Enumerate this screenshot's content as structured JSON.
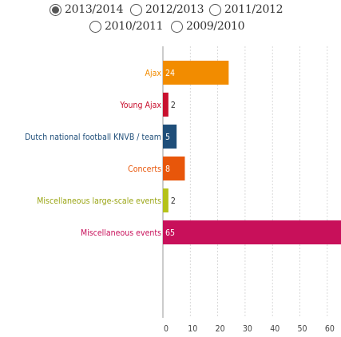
{
  "legend": {
    "items": [
      {
        "label": "2013/2014",
        "selected": true
      },
      {
        "label": "2012/2013",
        "selected": false
      },
      {
        "label": "2011/2012",
        "selected": false
      },
      {
        "label": "2010/2011",
        "selected": false
      },
      {
        "label": "2009/2010",
        "selected": false
      }
    ]
  },
  "chart_data": {
    "type": "bar",
    "orientation": "horizontal",
    "title": "",
    "xlabel": "",
    "ylabel": "",
    "categories": [
      "Ajax",
      "Young Ajax",
      "Dutch national football KNVB / team",
      "Concerts",
      "Miscellaneous large-scale events",
      "Miscellaneous events"
    ],
    "values": [
      24,
      2,
      5,
      8,
      2,
      65
    ],
    "colors": [
      "#f28c00",
      "#c8102e",
      "#1f4e79",
      "#e8560a",
      "#b5c218",
      "#c8105a"
    ],
    "label_colors": [
      "#f28c00",
      "#c8102e",
      "#1f4e79",
      "#e8560a",
      "#9aa514",
      "#c8105a"
    ],
    "xlim": [
      0,
      65
    ],
    "xticks": [
      0,
      10,
      20,
      30,
      40,
      50,
      60
    ],
    "grid": true,
    "legend_placement": "top"
  }
}
